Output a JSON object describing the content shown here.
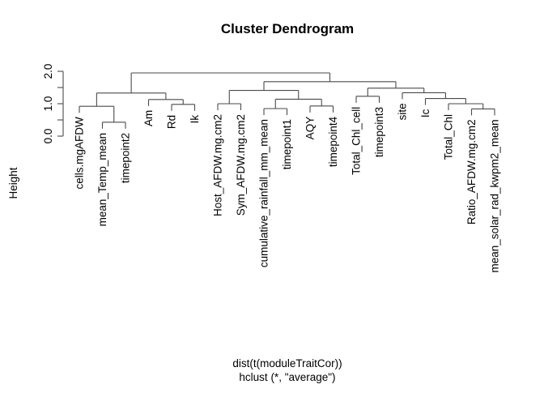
{
  "title": "Cluster Dendrogram",
  "colors": {
    "background": "#ffffff",
    "line": "#4a4a4a",
    "text": "#000000"
  },
  "chart_data": {
    "type": "dendrogram",
    "title": "Cluster Dendrogram",
    "ylabel": "Height",
    "xlabel": "dist(t(moduleTraitCor))",
    "sub": "hclust (*, \"average\")",
    "clustering_method": "average",
    "y_axis": {
      "range": [
        0,
        2
      ],
      "tick_values": [
        0,
        0.5,
        1,
        1.5,
        2
      ],
      "tick_labels": [
        "0.0",
        "",
        "1.0",
        "",
        "2.0"
      ]
    },
    "hang": 0.1,
    "leaf_order": [
      "cells.mgAFDW",
      "mean_Temp_mean",
      "timepoint2",
      "Am",
      "Rd",
      "Ik",
      "Host_AFDW.mg.cm2",
      "Sym_AFDW.mg.cm2",
      "cumulative_rainfall_mm_mean",
      "timepoint1",
      "AQY",
      "timepoint4",
      "Total_Chl_cell",
      "timepoint3",
      "site",
      "Ic",
      "Total_Chl",
      "Ratio_AFDW.mg.cm2",
      "mean_solar_rad_kwpm2_mean"
    ],
    "tree": {
      "height": 1.95,
      "children": [
        {
          "height": 1.33,
          "children": [
            {
              "height": 0.92,
              "children": [
                {
                  "label": "cells.mgAFDW"
                },
                {
                  "height": 0.43,
                  "children": [
                    {
                      "label": "mean_Temp_mean"
                    },
                    {
                      "label": "timepoint2"
                    }
                  ]
                }
              ]
            },
            {
              "height": 1.13,
              "children": [
                {
                  "label": "Am"
                },
                {
                  "height": 0.98,
                  "children": [
                    {
                      "label": "Rd"
                    },
                    {
                      "label": "Ik"
                    }
                  ]
                }
              ]
            }
          ]
        },
        {
          "height": 1.68,
          "children": [
            {
              "height": 1.41,
              "children": [
                {
                  "height": 1.0,
                  "children": [
                    {
                      "label": "Host_AFDW.mg.cm2"
                    },
                    {
                      "label": "Sym_AFDW.mg.cm2"
                    }
                  ]
                },
                {
                  "height": 1.14,
                  "children": [
                    {
                      "height": 0.85,
                      "children": [
                        {
                          "label": "cumulative_rainfall_mm_mean"
                        },
                        {
                          "label": "timepoint1"
                        }
                      ]
                    },
                    {
                      "height": 0.93,
                      "children": [
                        {
                          "label": "AQY"
                        },
                        {
                          "label": "timepoint4"
                        }
                      ]
                    }
                  ]
                }
              ]
            },
            {
              "height": 1.48,
              "children": [
                {
                  "height": 1.23,
                  "children": [
                    {
                      "label": "Total_Chl_cell"
                    },
                    {
                      "label": "timepoint3"
                    }
                  ]
                },
                {
                  "height": 1.34,
                  "children": [
                    {
                      "label": "site"
                    },
                    {
                      "height": 1.16,
                      "children": [
                        {
                          "label": "Ic"
                        },
                        {
                          "height": 1.0,
                          "children": [
                            {
                              "label": "Total_Chl"
                            },
                            {
                              "height": 0.84,
                              "children": [
                                {
                                  "label": "Ratio_AFDW.mg.cm2"
                                },
                                {
                                  "label": "mean_solar_rad_kwpm2_mean"
                                }
                              ]
                            }
                          ]
                        }
                      ]
                    }
                  ]
                }
              ]
            }
          ]
        }
      ]
    }
  }
}
